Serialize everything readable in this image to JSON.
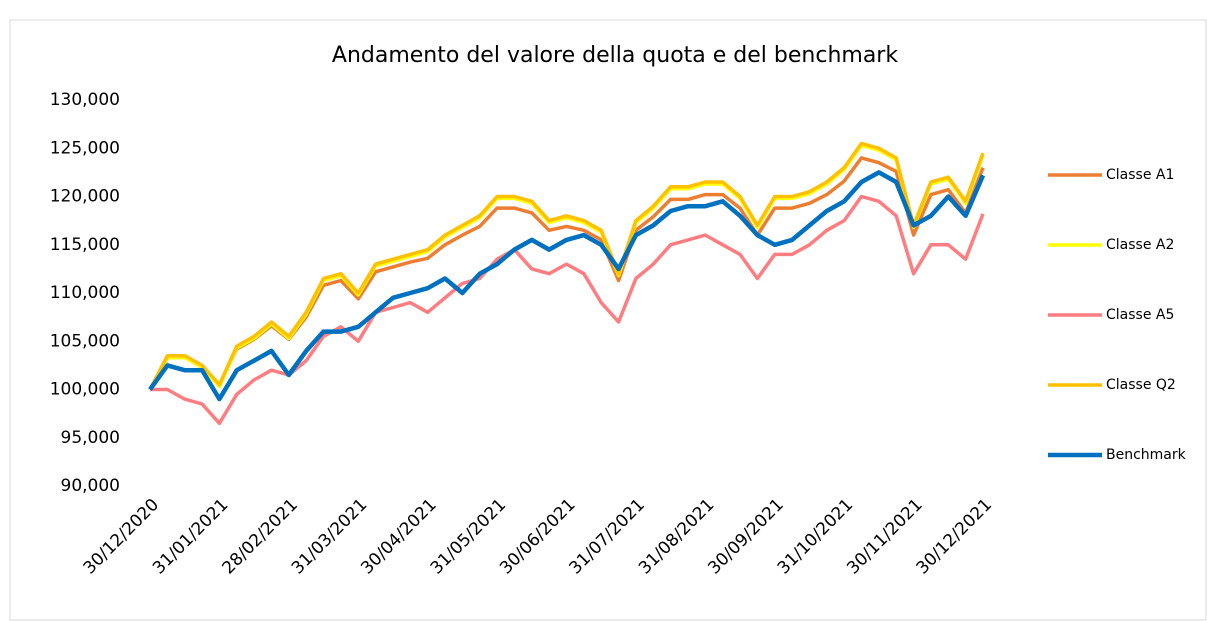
{
  "chart_data": {
    "type": "line",
    "title": "Andamento del valore della quota e del benchmark",
    "categories": [
      "30/12/2020",
      null,
      null,
      null,
      "31/01/2021",
      null,
      null,
      null,
      "28/02/2021",
      null,
      null,
      null,
      "31/03/2021",
      null,
      null,
      null,
      "30/04/2021",
      null,
      null,
      null,
      "31/05/2021",
      null,
      null,
      null,
      "30/06/2021",
      null,
      null,
      null,
      "31/07/2021",
      null,
      null,
      null,
      "31/08/2021",
      null,
      null,
      null,
      "30/09/2021",
      null,
      null,
      null,
      "31/10/2021",
      null,
      null,
      null,
      "30/11/2021",
      null,
      null,
      null,
      "30/12/2021"
    ],
    "series": [
      {
        "name": "Classe A1",
        "color": "#ed7d31",
        "values": [
          100000,
          103300,
          103300,
          102400,
          100500,
          104200,
          105200,
          106600,
          105200,
          107500,
          110800,
          111300,
          109400,
          112200,
          112700,
          113200,
          113600,
          115000,
          116000,
          116900,
          118800,
          118800,
          118300,
          116500,
          116900,
          116500,
          115500,
          111300,
          116500,
          117900,
          119700,
          119700,
          120200,
          120200,
          118800,
          116000,
          118800,
          118800,
          119300,
          120200,
          121600,
          124000,
          123500,
          122600,
          116000,
          120200,
          120700,
          118300,
          123000
        ]
      },
      {
        "name": "Classe A2",
        "color": "#ffff00",
        "values": [
          100000,
          103300,
          103300,
          102300,
          100300,
          104300,
          105300,
          106800,
          105300,
          107800,
          111300,
          111800,
          109800,
          112800,
          113300,
          113800,
          114300,
          115800,
          116800,
          117800,
          119800,
          119800,
          119300,
          117300,
          117800,
          117300,
          116300,
          111800,
          117300,
          118800,
          120800,
          120800,
          121300,
          121300,
          119800,
          116800,
          119800,
          119800,
          120300,
          121300,
          122800,
          125300,
          124800,
          123800,
          116800,
          121300,
          121800,
          119300,
          124300
        ]
      },
      {
        "name": "Classe A5",
        "color": "#ff7c80",
        "values": [
          100000,
          100000,
          99000,
          98500,
          96500,
          99500,
          101000,
          102000,
          101500,
          103000,
          105500,
          106500,
          105000,
          108000,
          108500,
          109000,
          108000,
          109500,
          111000,
          111500,
          113500,
          114500,
          112500,
          112000,
          113000,
          112000,
          109000,
          107000,
          111500,
          113000,
          115000,
          115500,
          116000,
          115000,
          114000,
          111500,
          114000,
          114000,
          115000,
          116500,
          117500,
          120000,
          119500,
          118000,
          112000,
          115000,
          115000,
          113500,
          118200
        ]
      },
      {
        "name": "Classe Q2",
        "color": "#ffc000",
        "values": [
          100000,
          103500,
          103500,
          102500,
          100500,
          104500,
          105500,
          107000,
          105500,
          108000,
          111500,
          112000,
          110000,
          113000,
          113500,
          114000,
          114500,
          116000,
          117000,
          118000,
          120000,
          120000,
          119500,
          117500,
          118000,
          117500,
          116500,
          112000,
          117500,
          119000,
          121000,
          121000,
          121500,
          121500,
          120000,
          117000,
          120000,
          120000,
          120500,
          121500,
          123000,
          125500,
          125000,
          124000,
          117000,
          121500,
          122000,
          119500,
          124500
        ]
      },
      {
        "name": "Benchmark",
        "color": "#0070c0",
        "values": [
          100000,
          102500,
          102000,
          102000,
          99000,
          102000,
          103000,
          104000,
          101500,
          104000,
          106000,
          106000,
          106500,
          108000,
          109500,
          110000,
          110500,
          111500,
          110000,
          112000,
          113000,
          114500,
          115500,
          114500,
          115500,
          116000,
          115000,
          112500,
          116000,
          117000,
          118500,
          119000,
          119000,
          119500,
          118000,
          116000,
          115000,
          115500,
          117000,
          118500,
          119500,
          121500,
          122500,
          121500,
          117000,
          118000,
          120000,
          118000,
          122200
        ]
      }
    ],
    "ylim": [
      90000,
      130000
    ],
    "yticks": [
      {
        "value": 90000,
        "label": "90,000"
      },
      {
        "value": 95000,
        "label": "95,000"
      },
      {
        "value": 100000,
        "label": "100,000"
      },
      {
        "value": 105000,
        "label": "105,000"
      },
      {
        "value": 110000,
        "label": "110,000"
      },
      {
        "value": 115000,
        "label": "115,000"
      },
      {
        "value": 120000,
        "label": "120,000"
      },
      {
        "value": 125000,
        "label": "125,000"
      },
      {
        "value": 130000,
        "label": "130,000"
      }
    ],
    "grid": false,
    "legend": "right"
  }
}
